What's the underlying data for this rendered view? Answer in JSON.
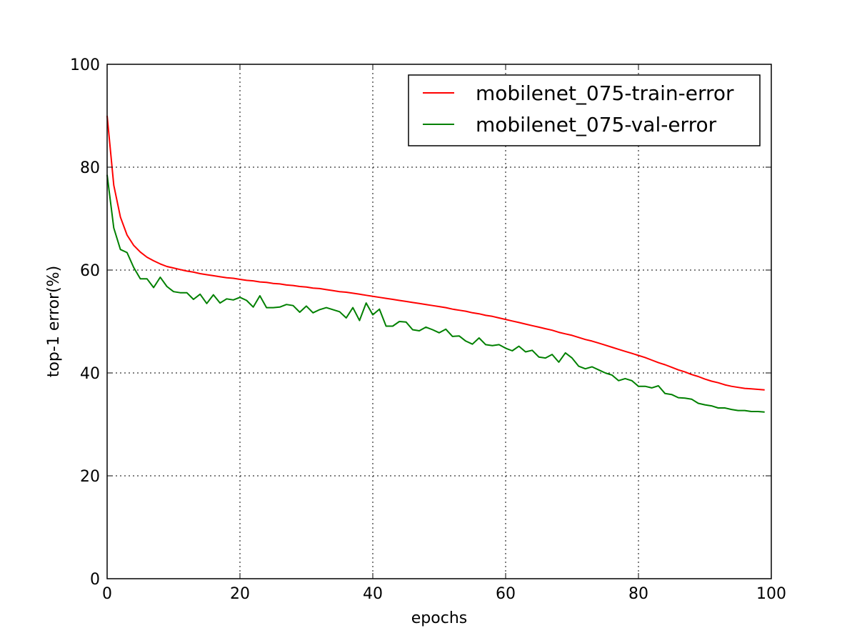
{
  "chart_data": {
    "type": "line",
    "title": "",
    "xlabel": "epochs",
    "ylabel": "top-1 error(%)",
    "xlim": [
      0,
      100
    ],
    "ylim": [
      0,
      100
    ],
    "xticks": [
      0,
      20,
      40,
      60,
      80,
      100
    ],
    "yticks": [
      0,
      20,
      40,
      60,
      80,
      100
    ],
    "grid": true,
    "legend_position": "top-right",
    "series": [
      {
        "name": "mobilenet_075-train-error",
        "color": "#ff0000",
        "x": [
          0,
          1,
          2,
          3,
          4,
          5,
          6,
          7,
          8,
          9,
          10,
          11,
          12,
          13,
          14,
          15,
          16,
          17,
          18,
          19,
          20,
          21,
          22,
          23,
          24,
          25,
          26,
          27,
          28,
          29,
          30,
          31,
          32,
          33,
          34,
          35,
          36,
          37,
          38,
          39,
          40,
          41,
          42,
          43,
          44,
          45,
          46,
          47,
          48,
          49,
          50,
          51,
          52,
          53,
          54,
          55,
          56,
          57,
          58,
          59,
          60,
          61,
          62,
          63,
          64,
          65,
          66,
          67,
          68,
          69,
          70,
          71,
          72,
          73,
          74,
          75,
          76,
          77,
          78,
          79,
          80,
          81,
          82,
          83,
          84,
          85,
          86,
          87,
          88,
          89,
          90,
          91,
          92,
          93,
          94,
          95,
          96,
          97,
          98,
          99
        ],
        "y": [
          90,
          76.5,
          70.3,
          66.8,
          64.8,
          63.5,
          62.5,
          61.8,
          61.2,
          60.7,
          60.4,
          60.1,
          59.8,
          59.6,
          59.3,
          59.1,
          58.9,
          58.7,
          58.5,
          58.4,
          58.2,
          58.0,
          57.9,
          57.7,
          57.6,
          57.4,
          57.3,
          57.1,
          57.0,
          56.8,
          56.7,
          56.5,
          56.4,
          56.2,
          56.0,
          55.8,
          55.7,
          55.5,
          55.3,
          55.1,
          54.9,
          54.7,
          54.5,
          54.3,
          54.1,
          53.9,
          53.7,
          53.5,
          53.3,
          53.1,
          52.9,
          52.7,
          52.4,
          52.2,
          52.0,
          51.7,
          51.5,
          51.2,
          51.0,
          50.7,
          50.4,
          50.1,
          49.8,
          49.5,
          49.2,
          48.9,
          48.6,
          48.3,
          47.9,
          47.6,
          47.3,
          46.9,
          46.5,
          46.2,
          45.8,
          45.4,
          45.0,
          44.6,
          44.2,
          43.8,
          43.4,
          43.0,
          42.5,
          42.0,
          41.6,
          41.1,
          40.6,
          40.2,
          39.7,
          39.3,
          38.8,
          38.4,
          38.1,
          37.7,
          37.4,
          37.2,
          37.0,
          36.9,
          36.8,
          36.7
        ]
      },
      {
        "name": "mobilenet_075-val-error",
        "color": "#008000",
        "x": [
          0,
          1,
          2,
          3,
          4,
          5,
          6,
          7,
          8,
          9,
          10,
          11,
          12,
          13,
          14,
          15,
          16,
          17,
          18,
          19,
          20,
          21,
          22,
          23,
          24,
          25,
          26,
          27,
          28,
          29,
          30,
          31,
          32,
          33,
          34,
          35,
          36,
          37,
          38,
          39,
          40,
          41,
          42,
          43,
          44,
          45,
          46,
          47,
          48,
          49,
          50,
          51,
          52,
          53,
          54,
          55,
          56,
          57,
          58,
          59,
          60,
          61,
          62,
          63,
          64,
          65,
          66,
          67,
          68,
          69,
          70,
          71,
          72,
          73,
          74,
          75,
          76,
          77,
          78,
          79,
          80,
          81,
          82,
          83,
          84,
          85,
          86,
          87,
          88,
          89,
          90,
          91,
          92,
          93,
          94,
          95,
          96,
          97,
          98,
          99
        ],
        "y": [
          78.5,
          68.2,
          64.0,
          63.4,
          60.5,
          58.3,
          58.3,
          56.6,
          58.6,
          56.8,
          55.8,
          55.6,
          55.6,
          54.3,
          55.3,
          53.5,
          55.2,
          53.6,
          54.4,
          54.2,
          54.7,
          54.1,
          52.8,
          55.0,
          52.7,
          52.7,
          52.8,
          53.3,
          53.1,
          51.8,
          53.0,
          51.7,
          52.3,
          52.7,
          52.3,
          51.9,
          50.7,
          52.7,
          50.2,
          53.6,
          51.3,
          52.4,
          49.1,
          49.1,
          50.0,
          49.9,
          48.4,
          48.2,
          48.9,
          48.4,
          47.8,
          48.5,
          47.1,
          47.2,
          46.2,
          45.6,
          46.8,
          45.5,
          45.3,
          45.5,
          44.8,
          44.3,
          45.2,
          44.1,
          44.4,
          43.1,
          42.9,
          43.6,
          42.1,
          43.9,
          42.9,
          41.3,
          40.8,
          41.2,
          40.6,
          40.0,
          39.6,
          38.5,
          38.9,
          38.5,
          37.4,
          37.4,
          37.1,
          37.5,
          36.0,
          35.8,
          35.2,
          35.1,
          34.9,
          34.1,
          33.8,
          33.6,
          33.2,
          33.2,
          32.9,
          32.7,
          32.7,
          32.5,
          32.5,
          32.4
        ]
      }
    ]
  }
}
